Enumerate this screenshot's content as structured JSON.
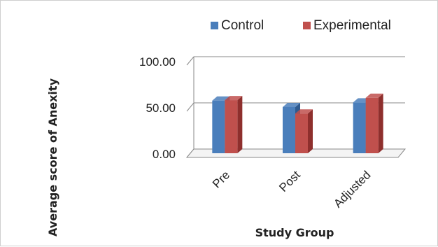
{
  "chart_data": {
    "type": "bar",
    "categories": [
      "Pre",
      "Post",
      "Adjusted"
    ],
    "series": [
      {
        "name": "Control",
        "values": [
          55.5,
          48.5,
          53.5
        ],
        "color": "#4a7ebb",
        "dark": "#2f5a8f"
      },
      {
        "name": "Experimental",
        "values": [
          56.0,
          41.5,
          58.5
        ],
        "color": "#c0504d",
        "dark": "#8e2f2d"
      }
    ],
    "xlabel": "Study Group",
    "ylabel": "Average score of Anexity",
    "ylim": [
      0,
      100
    ],
    "yticks": [
      "0.00",
      "50.00",
      "100.00"
    ],
    "ytick_values": [
      0,
      50,
      100
    ],
    "grid": true,
    "legend_position": "top",
    "style": "3d-clustered-column"
  }
}
